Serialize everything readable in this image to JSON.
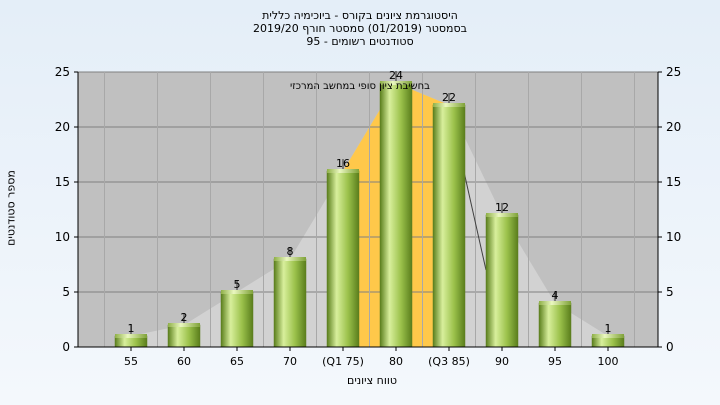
{
  "title_lines": [
    "היסטוגרמת ציונים בקורס - ביוכימיה כללית",
    "בסמסטר (01/2019) סמסטר חורף 2019/20",
    "סטודנטים רשומים - 95"
  ],
  "annotation": "בחשיבת ציון סופי במחשב המרכזי",
  "chart_data": {
    "type": "bar",
    "categories": [
      "55",
      "60",
      "65",
      "70",
      "(Q1 75)",
      "80",
      "(Q3 85)",
      "90",
      "95",
      "100"
    ],
    "values": [
      1,
      2,
      5,
      8,
      16,
      24,
      22,
      12,
      4,
      1
    ],
    "xlabel": "טווח ציונים",
    "ylabel": "מספר סטודנטים",
    "ylim": [
      0,
      25
    ],
    "yticks": [
      0,
      5,
      10,
      15,
      20,
      25
    ],
    "grid": true,
    "right_axis": true,
    "highlight_range": [
      "(Q1 75)",
      "(Q3 85)"
    ],
    "colors": {
      "bar_light": "#d8ef9c",
      "bar_mid": "#9cc24c",
      "bar_dark": "#5a7e1c",
      "plot_bg": "#c0c0c0",
      "iqr_fill": "#ffc84a",
      "curve_fill": "#d4d4d4"
    }
  }
}
